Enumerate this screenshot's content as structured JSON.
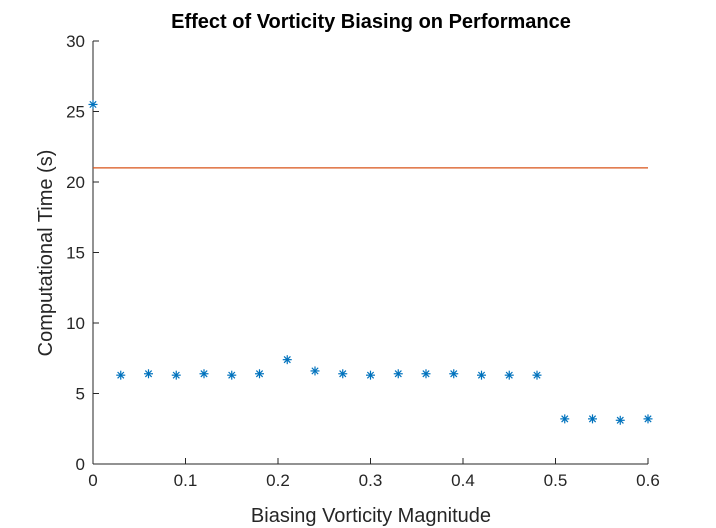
{
  "chart_data": {
    "type": "scatter",
    "title": "Effect of Vorticity Biasing on Performance",
    "xlabel": "Biasing Vorticity Magnitude",
    "ylabel": "Computational Time (s)",
    "xlim": [
      0,
      0.6
    ],
    "ylim": [
      0,
      30
    ],
    "xticks": [
      0,
      0.1,
      0.2,
      0.3,
      0.4,
      0.5,
      0.6
    ],
    "xtick_labels": [
      "0",
      "0.1",
      "0.2",
      "0.3",
      "0.4",
      "0.5",
      "0.6"
    ],
    "yticks": [
      0,
      5,
      10,
      15,
      20,
      25,
      30
    ],
    "ytick_labels": [
      "0",
      "5",
      "10",
      "15",
      "20",
      "25",
      "30"
    ],
    "grid": false,
    "series": [
      {
        "marker": "asterisk",
        "color": "#0072BD",
        "x": [
          0,
          0.03,
          0.06,
          0.09,
          0.12,
          0.15,
          0.18,
          0.21,
          0.24,
          0.27,
          0.3,
          0.33,
          0.36,
          0.39,
          0.42,
          0.45,
          0.48,
          0.51,
          0.54,
          0.57,
          0.6
        ],
        "y": [
          25.5,
          6.3,
          6.4,
          6.3,
          6.4,
          6.3,
          6.4,
          7.4,
          6.6,
          6.4,
          6.3,
          6.4,
          6.4,
          6.4,
          6.3,
          6.3,
          6.3,
          3.2,
          3.2,
          3.1,
          3.2
        ]
      },
      {
        "marker": "line",
        "color": "#D95319",
        "x": [
          0,
          0.6
        ],
        "y": [
          21,
          21
        ]
      }
    ]
  }
}
